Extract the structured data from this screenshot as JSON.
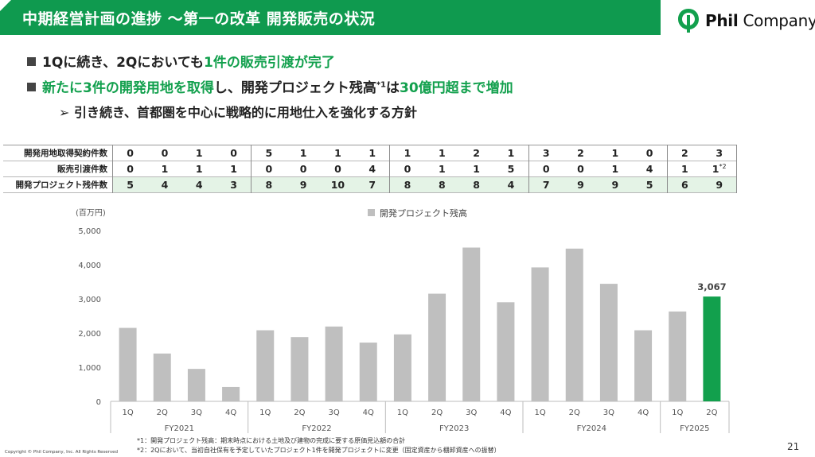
{
  "header": {
    "title": "中期経営計画の進捗 〜第一の改革 開発販売の状況",
    "logo_text_bold": "Phil",
    "logo_text_rest": " Company"
  },
  "bullets": {
    "b1_part1": "1Qに続き、2Qにおいても",
    "b1_part2": "1件の販売引渡が完了",
    "b2_part1": "新たに3件の開発用地を取得",
    "b2_part2": "し、開発プロジェクト残高",
    "b2_sup": "*1",
    "b2_part3": "は",
    "b2_part4": "30億円超まで増加",
    "b3": "➢ 引き続き、首都圏を中心に戦略的に用地仕入を強化する方針"
  },
  "table": {
    "rows": [
      {
        "label": "開発用地取得契約件数",
        "values": [
          "0",
          "0",
          "1",
          "0",
          "5",
          "1",
          "1",
          "1",
          "1",
          "1",
          "2",
          "1",
          "3",
          "2",
          "1",
          "0",
          "2",
          "3"
        ]
      },
      {
        "label": "販売引渡件数",
        "values": [
          "0",
          "1",
          "1",
          "1",
          "0",
          "0",
          "0",
          "4",
          "0",
          "1",
          "1",
          "5",
          "0",
          "0",
          "1",
          "4",
          "1",
          "1"
        ],
        "last_sup": "*2"
      },
      {
        "label": "開発プロジェクト残件数",
        "values": [
          "5",
          "4",
          "4",
          "3",
          "8",
          "9",
          "10",
          "7",
          "8",
          "8",
          "8",
          "4",
          "7",
          "9",
          "9",
          "5",
          "6",
          "9"
        ]
      }
    ]
  },
  "chart_data": {
    "type": "bar",
    "unit_label": "(百万円)",
    "legend": "開発プロジェクト残高",
    "categories": [
      "1Q",
      "2Q",
      "3Q",
      "4Q",
      "1Q",
      "2Q",
      "3Q",
      "4Q",
      "1Q",
      "2Q",
      "3Q",
      "4Q",
      "1Q",
      "2Q",
      "3Q",
      "4Q",
      "1Q",
      "2Q"
    ],
    "groups": [
      {
        "name": "FY2021",
        "count": 4
      },
      {
        "name": "FY2022",
        "count": 4
      },
      {
        "name": "FY2023",
        "count": 4
      },
      {
        "name": "FY2024",
        "count": 4
      },
      {
        "name": "FY2025",
        "count": 2
      }
    ],
    "values": [
      2150,
      1400,
      950,
      420,
      2080,
      1880,
      2190,
      1720,
      1960,
      3150,
      4500,
      2900,
      3920,
      4470,
      3440,
      2080,
      2630,
      3067
    ],
    "highlight_index": 17,
    "highlight_label": "3,067",
    "ylim": [
      0,
      5000
    ],
    "yticks": [
      "0",
      "1,000",
      "2,000",
      "3,000",
      "4,000",
      "5,000"
    ],
    "colors": {
      "bar": "#bfbfbf",
      "highlight": "#12a04d"
    }
  },
  "footnotes": {
    "fn1": "*1：開発プロジェクト残高：期末時点における土地及び建物の完成に要する原価見込額の合計",
    "fn2": "*2：2Qにおいて、当初自社保有を予定していたプロジェクト1件を開発プロジェクトに変更（固定資産から棚卸資産への振替）"
  },
  "copyright": "Copyright © Phil Company, Inc.  All Rights Reserved",
  "page_number": "21"
}
